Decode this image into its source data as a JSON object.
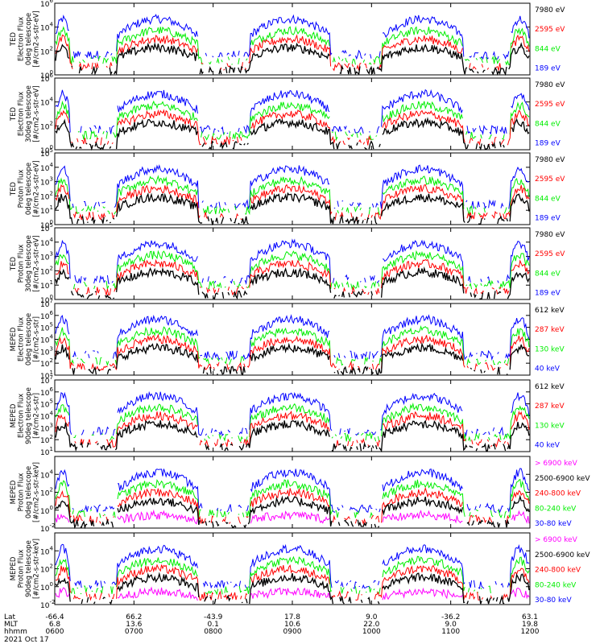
{
  "chart_data": {
    "type": "line",
    "x_range_hhmm": [
      "0600",
      "1200"
    ],
    "x_ticks": [
      {
        "lat": "-66.4",
        "mlt": "6.8",
        "hhmm": "0600"
      },
      {
        "lat": "66.2",
        "mlt": "13.6",
        "hhmm": "0700"
      },
      {
        "lat": "-43.9",
        "mlt": "0.1",
        "hhmm": "0800"
      },
      {
        "lat": "17.8",
        "mlt": "10.6",
        "hhmm": "0900"
      },
      {
        "lat": "9.0",
        "mlt": "22.0",
        "hhmm": "1000"
      },
      {
        "lat": "-36.2",
        "mlt": "9.0",
        "hhmm": "1100"
      },
      {
        "lat": "63.1",
        "mlt": "19.8",
        "hhmm": "1200"
      }
    ],
    "x_row_labels": [
      "Lat",
      "MLT",
      "hhmm"
    ],
    "date_label": "2021 Oct 17",
    "colors": {
      "blue": "#0000ff",
      "red": "#ff0000",
      "green": "#00ee00",
      "black": "#000000",
      "magenta": "#ff00ff"
    },
    "panels": [
      {
        "ylabel_lines": [
          "TED",
          "Electron Flux",
          "0deg telescope",
          "[#/cm2-s-str-eV]"
        ],
        "y_log_range": [
          0,
          6
        ],
        "y_tick_exps": [
          0,
          2,
          4,
          6
        ],
        "legend": [
          {
            "label": "7980 eV",
            "color": "black"
          },
          {
            "label": "2595 eV",
            "color": "red"
          },
          {
            "label": "844 eV",
            "color": "green"
          },
          {
            "label": "189 eV",
            "color": "blue"
          }
        ]
      },
      {
        "ylabel_lines": [
          "TED",
          "Electron Flux",
          "30deg telescope",
          "[#/cm2-s-str-eV]"
        ],
        "y_log_range": [
          0,
          6
        ],
        "y_tick_exps": [
          0,
          2,
          4,
          6
        ],
        "legend": [
          {
            "label": "7980 eV",
            "color": "black"
          },
          {
            "label": "2595 eV",
            "color": "red"
          },
          {
            "label": "844 eV",
            "color": "green"
          },
          {
            "label": "189 eV",
            "color": "blue"
          }
        ]
      },
      {
        "ylabel_lines": [
          "TED",
          "Proton Flux",
          "0deg telescope",
          "[#/cm2-s-str-eV]"
        ],
        "y_log_range": [
          0,
          5
        ],
        "y_tick_exps": [
          0,
          1,
          2,
          3,
          4,
          5
        ],
        "legend": [
          {
            "label": "7980 eV",
            "color": "black"
          },
          {
            "label": "2595 eV",
            "color": "red"
          },
          {
            "label": "844 eV",
            "color": "green"
          },
          {
            "label": "189 eV",
            "color": "blue"
          }
        ]
      },
      {
        "ylabel_lines": [
          "TED",
          "Proton Flux",
          "30deg telescope",
          "[#/cm2-s-str-eV]"
        ],
        "y_log_range": [
          0,
          5
        ],
        "y_tick_exps": [
          0,
          1,
          2,
          3,
          4,
          5
        ],
        "legend": [
          {
            "label": "7980 eV",
            "color": "black"
          },
          {
            "label": "2595 eV",
            "color": "red"
          },
          {
            "label": "844 eV",
            "color": "green"
          },
          {
            "label": "189 eV",
            "color": "blue"
          }
        ]
      },
      {
        "ylabel_lines": [
          "MEPED",
          "Electron Flux",
          "0deg telescope",
          "[#/cm2-s-str]"
        ],
        "y_log_range": [
          1,
          7
        ],
        "y_tick_exps": [
          1,
          2,
          3,
          4,
          5,
          6,
          7
        ],
        "legend": [
          {
            "label": "612 keV",
            "color": "black"
          },
          {
            "label": "287 keV",
            "color": "red"
          },
          {
            "label": "130 keV",
            "color": "green"
          },
          {
            "label": "40 keV",
            "color": "blue"
          }
        ]
      },
      {
        "ylabel_lines": [
          "MEPED",
          "Electron Flux",
          "90deg telescope",
          "[#/cm2-s-str]"
        ],
        "y_log_range": [
          1,
          7
        ],
        "y_tick_exps": [
          1,
          2,
          3,
          4,
          5,
          6,
          7
        ],
        "legend": [
          {
            "label": "612 keV",
            "color": "black"
          },
          {
            "label": "287 keV",
            "color": "red"
          },
          {
            "label": "130 keV",
            "color": "green"
          },
          {
            "label": "40 keV",
            "color": "blue"
          }
        ]
      },
      {
        "ylabel_lines": [
          "MEPED",
          "Proton Flux",
          "0deg telescope",
          "[#/cm2-s-str-keV]"
        ],
        "y_log_range": [
          -2,
          6
        ],
        "y_tick_exps": [
          -2,
          0,
          2,
          4
        ],
        "legend": [
          {
            "label": "> 6900 keV",
            "color": "magenta"
          },
          {
            "label": "2500-6900 keV",
            "color": "black"
          },
          {
            "label": "240-800 keV",
            "color": "red"
          },
          {
            "label": "80-240 keV",
            "color": "green"
          },
          {
            "label": "30-80 keV",
            "color": "blue"
          }
        ]
      },
      {
        "ylabel_lines": [
          "MEPED",
          "Proton Flux",
          "90deg telescope",
          "[#/cm2-s-str-keV]"
        ],
        "y_log_range": [
          -2,
          6
        ],
        "y_tick_exps": [
          -2,
          0,
          2,
          4
        ],
        "legend": [
          {
            "label": "> 6900 keV",
            "color": "magenta"
          },
          {
            "label": "2500-6900 keV",
            "color": "black"
          },
          {
            "label": "240-800 keV",
            "color": "red"
          },
          {
            "label": "80-240 keV",
            "color": "green"
          },
          {
            "label": "30-80 keV",
            "color": "blue"
          }
        ]
      }
    ]
  }
}
